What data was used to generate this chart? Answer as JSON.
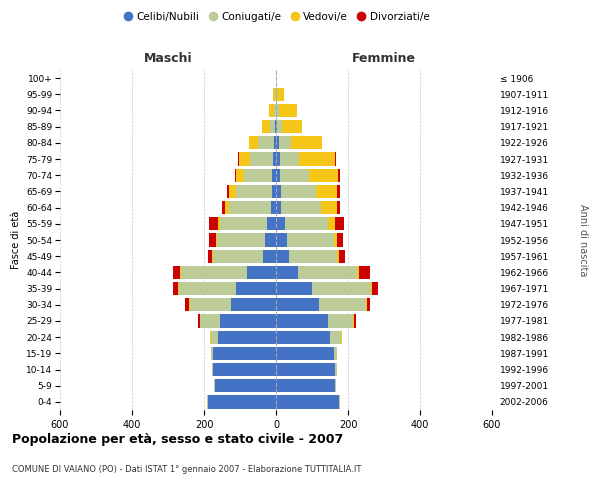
{
  "age_groups": [
    "0-4",
    "5-9",
    "10-14",
    "15-19",
    "20-24",
    "25-29",
    "30-34",
    "35-39",
    "40-44",
    "45-49",
    "50-54",
    "55-59",
    "60-64",
    "65-69",
    "70-74",
    "75-79",
    "80-84",
    "85-89",
    "90-94",
    "95-99",
    "100+"
  ],
  "birth_years": [
    "2002-2006",
    "1997-2001",
    "1992-1996",
    "1987-1991",
    "1982-1986",
    "1977-1981",
    "1972-1976",
    "1967-1971",
    "1962-1966",
    "1957-1961",
    "1952-1956",
    "1947-1951",
    "1942-1946",
    "1937-1941",
    "1932-1936",
    "1927-1931",
    "1922-1926",
    "1917-1921",
    "1912-1916",
    "1907-1911",
    "≤ 1906"
  ],
  "maschi": {
    "celibi": [
      190,
      170,
      175,
      175,
      160,
      155,
      125,
      110,
      80,
      35,
      30,
      25,
      15,
      12,
      10,
      8,
      5,
      3,
      0,
      0,
      0
    ],
    "coniugati": [
      2,
      2,
      2,
      5,
      20,
      55,
      115,
      160,
      185,
      140,
      135,
      130,
      115,
      100,
      80,
      65,
      45,
      15,
      5,
      2,
      0
    ],
    "vedovi": [
      0,
      0,
      0,
      0,
      2,
      2,
      2,
      2,
      2,
      2,
      3,
      5,
      12,
      18,
      20,
      30,
      25,
      20,
      15,
      5,
      0
    ],
    "divorziati": [
      0,
      0,
      0,
      0,
      2,
      5,
      10,
      15,
      20,
      12,
      18,
      25,
      8,
      5,
      5,
      2,
      0,
      0,
      0,
      0,
      0
    ]
  },
  "femmine": {
    "nubili": [
      175,
      165,
      165,
      160,
      150,
      145,
      120,
      100,
      60,
      35,
      30,
      25,
      15,
      15,
      12,
      10,
      8,
      3,
      0,
      0,
      0
    ],
    "coniugate": [
      2,
      2,
      5,
      10,
      30,
      70,
      130,
      165,
      165,
      135,
      130,
      120,
      110,
      95,
      80,
      55,
      35,
      15,
      8,
      2,
      0
    ],
    "vedove": [
      0,
      0,
      0,
      0,
      2,
      2,
      2,
      3,
      5,
      5,
      10,
      20,
      45,
      60,
      80,
      100,
      85,
      55,
      50,
      20,
      0
    ],
    "divorziate": [
      0,
      0,
      0,
      0,
      2,
      5,
      10,
      15,
      30,
      18,
      15,
      25,
      8,
      8,
      5,
      2,
      0,
      0,
      0,
      0,
      0
    ]
  },
  "colors": {
    "celibi_nubili": "#4472C4",
    "coniugati": "#BBCC99",
    "vedovi": "#F5C518",
    "divorziati": "#CC0000"
  },
  "title": "Popolazione per età, sesso e stato civile - 2007",
  "subtitle": "COMUNE DI VAIANO (PO) - Dati ISTAT 1° gennaio 2007 - Elaborazione TUTTITALIA.IT",
  "xlabel_left": "Maschi",
  "xlabel_right": "Femmine",
  "ylabel_left": "Fasce di età",
  "ylabel_right": "Anni di nascita",
  "xlim": 600,
  "background_color": "#ffffff",
  "grid_color": "#cccccc"
}
